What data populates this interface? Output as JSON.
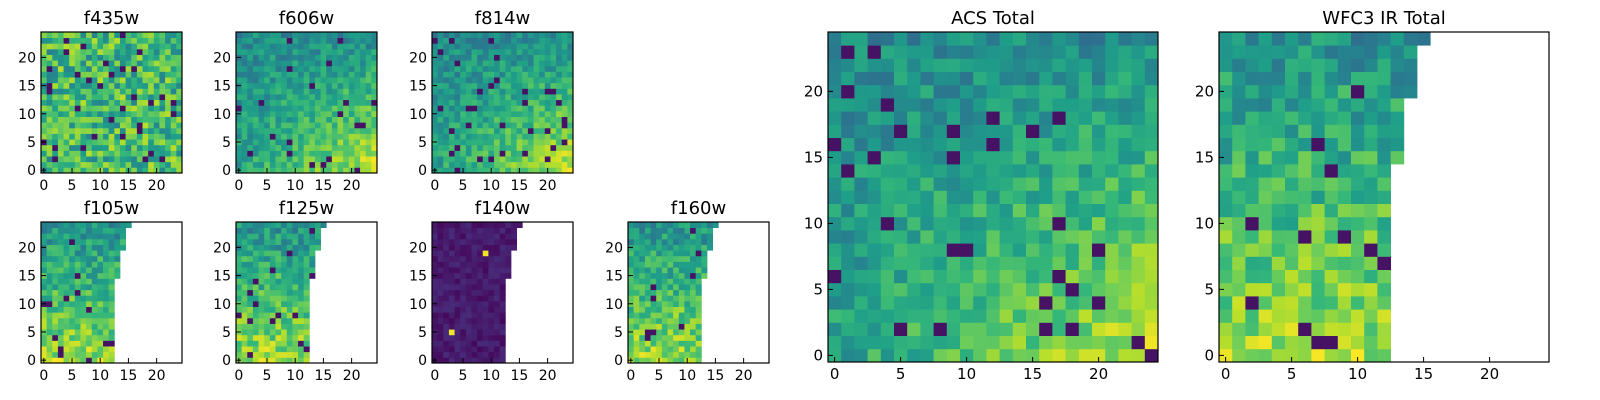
{
  "chart_data": [
    {
      "type": "heatmap",
      "title": "f435w",
      "xticks": [
        "0",
        "5",
        "10",
        "15",
        "20"
      ],
      "yticks": [
        "0",
        "5",
        "10",
        "15",
        "20"
      ],
      "xlim": [
        0,
        25
      ],
      "ylim": [
        0,
        25
      ],
      "colormap": "viridis",
      "coverage": "full",
      "trend": "uniform noise"
    },
    {
      "type": "heatmap",
      "title": "f606w",
      "xticks": [
        "0",
        "5",
        "10",
        "15",
        "20"
      ],
      "yticks": [
        "0",
        "5",
        "10",
        "15",
        "20"
      ],
      "xlim": [
        0,
        25
      ],
      "ylim": [
        0,
        25
      ],
      "colormap": "viridis",
      "coverage": "full",
      "trend": "brighter toward lower right"
    },
    {
      "type": "heatmap",
      "title": "f814w",
      "xticks": [
        "0",
        "5",
        "10",
        "15",
        "20"
      ],
      "yticks": [
        "0",
        "5",
        "10",
        "15",
        "20"
      ],
      "xlim": [
        0,
        25
      ],
      "ylim": [
        0,
        25
      ],
      "colormap": "viridis",
      "coverage": "full",
      "trend": "brighter toward lower right"
    },
    {
      "type": "heatmap",
      "title": "f105w",
      "xticks": [
        "0",
        "5",
        "10",
        "15",
        "20"
      ],
      "yticks": [
        "0",
        "5",
        "10",
        "15",
        "20"
      ],
      "xlim": [
        0,
        25
      ],
      "ylim": [
        0,
        25
      ],
      "colormap": "viridis",
      "coverage": "left half",
      "trend": "brighter toward bottom"
    },
    {
      "type": "heatmap",
      "title": "f125w",
      "xticks": [
        "0",
        "5",
        "10",
        "15",
        "20"
      ],
      "yticks": [
        "0",
        "5",
        "10",
        "15",
        "20"
      ],
      "xlim": [
        0,
        25
      ],
      "ylim": [
        0,
        25
      ],
      "colormap": "viridis",
      "coverage": "left half",
      "trend": "brighter toward bottom"
    },
    {
      "type": "heatmap",
      "title": "f140w",
      "xticks": [
        "0",
        "5",
        "10",
        "15",
        "20"
      ],
      "yticks": [
        "0",
        "5",
        "10",
        "15",
        "20"
      ],
      "xlim": [
        0,
        25
      ],
      "ylim": [
        0,
        25
      ],
      "colormap": "viridis",
      "coverage": "left half",
      "trend": "dark with two bright pixels"
    },
    {
      "type": "heatmap",
      "title": "f160w",
      "xticks": [
        "0",
        "5",
        "10",
        "15",
        "20"
      ],
      "yticks": [
        "0",
        "5",
        "10",
        "15",
        "20"
      ],
      "xlim": [
        0,
        25
      ],
      "ylim": [
        0,
        25
      ],
      "colormap": "viridis",
      "coverage": "left half",
      "trend": "brighter toward bottom"
    },
    {
      "type": "heatmap",
      "title": "ACS Total",
      "xticks": [
        "0",
        "5",
        "10",
        "15",
        "20"
      ],
      "yticks": [
        "0",
        "5",
        "10",
        "15",
        "20"
      ],
      "xlim": [
        0,
        25
      ],
      "ylim": [
        0,
        25
      ],
      "colormap": "viridis",
      "coverage": "full",
      "trend": "brighter toward lower right"
    },
    {
      "type": "heatmap",
      "title": "WFC3 IR Total",
      "xticks": [
        "0",
        "5",
        "10",
        "15",
        "20"
      ],
      "yticks": [
        "0",
        "5",
        "10",
        "15",
        "20"
      ],
      "xlim": [
        0,
        25
      ],
      "ylim": [
        0,
        25
      ],
      "colormap": "viridis",
      "coverage": "left half",
      "trend": "brighter toward bottom"
    }
  ]
}
